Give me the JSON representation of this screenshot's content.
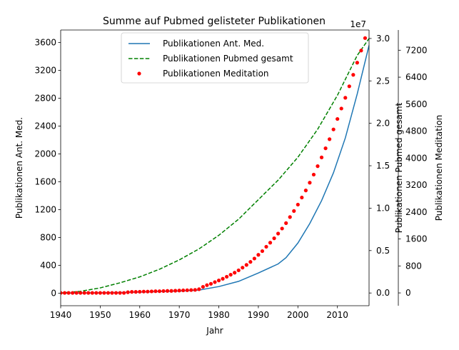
{
  "chart_data": {
    "type": "line",
    "title": "Summe auf Pubmed gelisteter Publikationen",
    "xlabel": "Jahr",
    "xlim": [
      1940,
      2018
    ],
    "x_ticks": [
      1940,
      1950,
      1960,
      1970,
      1980,
      1990,
      2000,
      2010
    ],
    "legend_position": "top-center",
    "grid": false,
    "axes": [
      {
        "id": "left",
        "ylabel": "Publikationen Ant. Med.",
        "ylim": [
          -180,
          3780
        ],
        "ticks": [
          0,
          400,
          800,
          1200,
          1600,
          2000,
          2400,
          2800,
          3200,
          3600
        ]
      },
      {
        "id": "right1",
        "ylabel": "Publikationen Pubmed gesamt",
        "offset_text": "1e7",
        "ylim": [
          -0.15,
          3.1
        ],
        "ticks": [
          0.0,
          0.5,
          1.0,
          1.5,
          2.0,
          2.5,
          3.0
        ],
        "tick_labels": [
          "0.0",
          "0.5",
          "1.0",
          "1.5",
          "2.0",
          "2.5",
          "3.0"
        ]
      },
      {
        "id": "right2",
        "ylabel": "Publikationen Meditation",
        "ylim": [
          -380,
          7800
        ],
        "ticks": [
          0,
          800,
          1600,
          2400,
          3200,
          4000,
          4800,
          5600,
          6400,
          7200
        ]
      }
    ],
    "series": [
      {
        "name": "Publikationen Ant. Med.",
        "axis": "left",
        "style": "solid",
        "color": "#1f77b4",
        "x": [
          1940,
          1945,
          1950,
          1955,
          1960,
          1965,
          1970,
          1975,
          1980,
          1985,
          1990,
          1995,
          1997,
          2000,
          2003,
          2006,
          2009,
          2012,
          2015,
          2018
        ],
        "y": [
          0,
          3,
          6,
          10,
          15,
          22,
          30,
          45,
          95,
          170,
          290,
          420,
          510,
          720,
          1000,
          1330,
          1730,
          2230,
          2860,
          3560
        ]
      },
      {
        "name": "Publikationen Pubmed gesamt",
        "axis": "right1",
        "style": "dashed",
        "color": "#008000",
        "x": [
          1940,
          1945,
          1950,
          1955,
          1960,
          1965,
          1970,
          1975,
          1980,
          1985,
          1990,
          1995,
          2000,
          2005,
          2010,
          2015,
          2018
        ],
        "y": [
          0.0,
          0.02,
          0.06,
          0.12,
          0.19,
          0.28,
          0.39,
          0.52,
          0.68,
          0.87,
          1.1,
          1.33,
          1.6,
          1.93,
          2.33,
          2.8,
          3.0
        ]
      },
      {
        "name": "Publikationen Meditation",
        "axis": "right2",
        "style": "dots",
        "color": "#ff0000",
        "x": [
          1940,
          1941,
          1942,
          1943,
          1944,
          1945,
          1946,
          1947,
          1948,
          1949,
          1950,
          1951,
          1952,
          1953,
          1954,
          1955,
          1956,
          1957,
          1958,
          1959,
          1960,
          1961,
          1962,
          1963,
          1964,
          1965,
          1966,
          1967,
          1968,
          1969,
          1970,
          1971,
          1972,
          1973,
          1974,
          1975,
          1976,
          1977,
          1978,
          1979,
          1980,
          1981,
          1982,
          1983,
          1984,
          1985,
          1986,
          1987,
          1988,
          1989,
          1990,
          1991,
          1992,
          1993,
          1994,
          1995,
          1996,
          1997,
          1998,
          1999,
          2000,
          2001,
          2002,
          2003,
          2004,
          2005,
          2006,
          2007,
          2008,
          2009,
          2010,
          2011,
          2012,
          2013,
          2014,
          2015,
          2016,
          2017,
          2018
        ],
        "y": [
          0,
          0,
          0,
          0,
          0,
          0,
          0,
          0,
          0,
          0,
          0,
          0,
          0,
          0,
          0,
          0,
          0,
          20,
          30,
          30,
          35,
          40,
          40,
          45,
          50,
          50,
          55,
          60,
          60,
          65,
          70,
          75,
          80,
          85,
          90,
          110,
          180,
          230,
          270,
          320,
          370,
          420,
          480,
          540,
          600,
          670,
          750,
          830,
          920,
          1020,
          1130,
          1240,
          1370,
          1490,
          1620,
          1760,
          1910,
          2070,
          2250,
          2430,
          2620,
          2830,
          3040,
          3270,
          3510,
          3760,
          4020,
          4290,
          4560,
          4850,
          5160,
          5470,
          5790,
          6130,
          6470,
          6830,
          7190,
          7560,
          7950
        ]
      }
    ]
  }
}
